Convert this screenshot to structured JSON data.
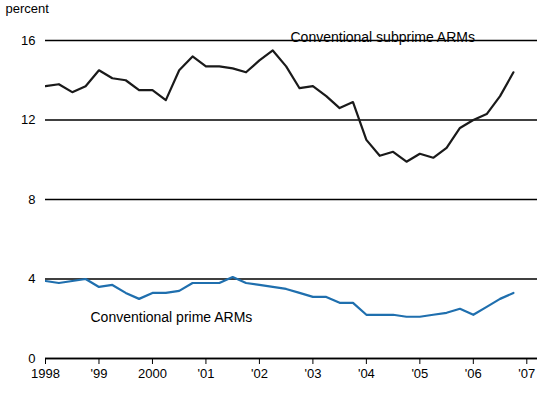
{
  "chart_data": {
    "type": "line",
    "y_label": "percent",
    "x": [
      1998,
      1998.25,
      1998.5,
      1998.75,
      1999,
      1999.25,
      1999.5,
      1999.75,
      2000,
      2000.25,
      2000.5,
      2000.75,
      2001,
      2001.25,
      2001.5,
      2001.75,
      2002,
      2002.25,
      2002.5,
      2002.75,
      2003,
      2003.25,
      2003.5,
      2003.75,
      2004,
      2004.25,
      2004.5,
      2004.75,
      2005,
      2005.25,
      2005.5,
      2005.75,
      2006,
      2006.25,
      2006.5,
      2006.75
    ],
    "series": [
      {
        "name": "Conventional subprime ARMs",
        "color": "#1a1a1a",
        "values": [
          13.7,
          13.8,
          13.4,
          13.7,
          14.5,
          14.1,
          14.0,
          13.5,
          13.5,
          13.0,
          14.5,
          15.2,
          14.7,
          14.7,
          14.6,
          14.4,
          15.0,
          15.5,
          14.7,
          13.6,
          13.7,
          13.2,
          12.6,
          12.9,
          11.0,
          10.2,
          10.4,
          9.9,
          10.3,
          10.1,
          10.6,
          11.6,
          12.0,
          12.3,
          13.2,
          14.4
        ]
      },
      {
        "name": "Conventional prime ARMs",
        "color": "#1f6fae",
        "values": [
          3.9,
          3.8,
          3.9,
          4.0,
          3.6,
          3.7,
          3.3,
          3.0,
          3.3,
          3.3,
          3.4,
          3.8,
          3.8,
          3.8,
          4.1,
          3.8,
          3.7,
          3.6,
          3.5,
          3.3,
          3.1,
          3.1,
          2.8,
          2.8,
          2.2,
          2.2,
          2.2,
          2.1,
          2.1,
          2.2,
          2.3,
          2.5,
          2.2,
          2.6,
          3.0,
          3.3
        ]
      }
    ],
    "xlim": [
      1998,
      2007.2
    ],
    "xticks": [
      {
        "value": 1998,
        "label": "1998"
      },
      {
        "value": 1999,
        "label": "'99"
      },
      {
        "value": 2000,
        "label": "2000"
      },
      {
        "value": 2001,
        "label": "'01"
      },
      {
        "value": 2002,
        "label": "'02"
      },
      {
        "value": 2003,
        "label": "'03"
      },
      {
        "value": 2004,
        "label": "'04"
      },
      {
        "value": 2005,
        "label": "'05"
      },
      {
        "value": 2006,
        "label": "'06"
      },
      {
        "value": 2007,
        "label": "'07"
      }
    ],
    "ylim": [
      0,
      16
    ],
    "yticks": [
      0,
      4,
      8,
      12,
      16
    ],
    "grid": true
  }
}
